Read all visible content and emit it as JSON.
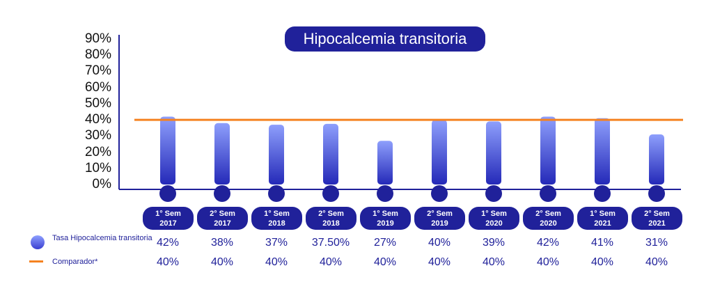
{
  "chart_data": {
    "type": "bar",
    "title": "Hipocalcemia transitoria",
    "categories": [
      [
        "1° Sem",
        "2017"
      ],
      [
        "2° Sem",
        "2017"
      ],
      [
        "1° Sem",
        "2018"
      ],
      [
        "2° Sem",
        "2018"
      ],
      [
        "1° Sem",
        "2019"
      ],
      [
        "2° Sem",
        "2019"
      ],
      [
        "1° Sem",
        "2020"
      ],
      [
        "2° Sem",
        "2020"
      ],
      [
        "1° Sem",
        "2021"
      ],
      [
        "2° Sem",
        "2021"
      ]
    ],
    "y_ticks": [
      "0%",
      "10%",
      "20%",
      "30%",
      "40%",
      "50%",
      "60%",
      "70%",
      "80%",
      "90%"
    ],
    "ylim": [
      0,
      90
    ],
    "series": [
      {
        "name": "Tasa Hipocalcemia transitoria",
        "type": "bar",
        "color": "#3a3fd0",
        "values": [
          42,
          38,
          37,
          37.5,
          27,
          40,
          39,
          42,
          41,
          31
        ],
        "labels": [
          "42%",
          "38%",
          "37%",
          "37.50%",
          "27%",
          "40%",
          "39%",
          "42%",
          "41%",
          "31%"
        ]
      },
      {
        "name": "Comparador*",
        "type": "line",
        "color": "#f58220",
        "values": [
          40,
          40,
          40,
          40,
          40,
          40,
          40,
          40,
          40,
          40
        ],
        "labels": [
          "40%",
          "40%",
          "40%",
          "40%",
          "40%",
          "40%",
          "40%",
          "40%",
          "40%",
          "40%"
        ]
      }
    ],
    "legend": "bottom-left"
  }
}
